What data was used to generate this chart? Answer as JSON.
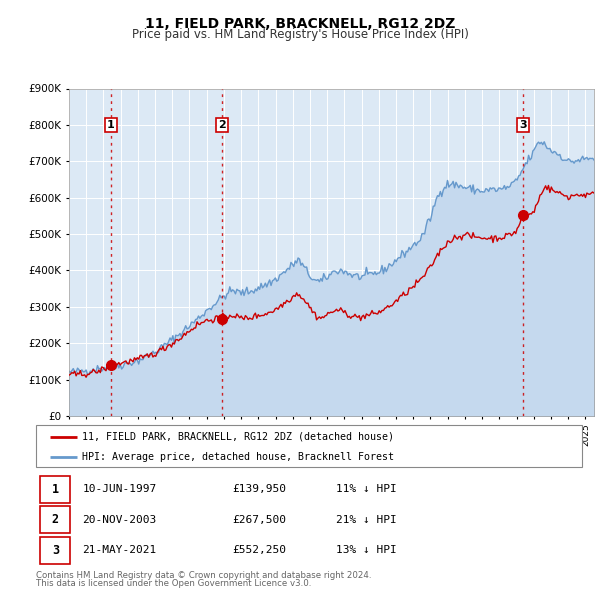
{
  "title": "11, FIELD PARK, BRACKNELL, RG12 2DZ",
  "subtitle": "Price paid vs. HM Land Registry's House Price Index (HPI)",
  "background_color": "#ffffff",
  "plot_bg_color": "#dce9f5",
  "grid_color": "#ffffff",
  "ylim": [
    0,
    900000
  ],
  "yticks": [
    0,
    100000,
    200000,
    300000,
    400000,
    500000,
    600000,
    700000,
    800000,
    900000
  ],
  "ytick_labels": [
    "£0",
    "£100K",
    "£200K",
    "£300K",
    "£400K",
    "£500K",
    "£600K",
    "£700K",
    "£800K",
    "£900K"
  ],
  "xlim_start": 1995.0,
  "xlim_end": 2025.5,
  "xticks": [
    1995,
    1996,
    1997,
    1998,
    1999,
    2000,
    2001,
    2002,
    2003,
    2004,
    2005,
    2006,
    2007,
    2008,
    2009,
    2010,
    2011,
    2012,
    2013,
    2014,
    2015,
    2016,
    2017,
    2018,
    2019,
    2020,
    2021,
    2022,
    2023,
    2024,
    2025
  ],
  "red_line_color": "#cc0000",
  "blue_line_color": "#6699cc",
  "blue_fill_color": "#c5d9ee",
  "sale_marker_color": "#cc0000",
  "sale_marker_size": 7,
  "vline_color": "#cc0000",
  "vline_style": "--",
  "sales": [
    {
      "label": "1",
      "date_year": 1997.44,
      "price": 139950
    },
    {
      "label": "2",
      "date_year": 2003.9,
      "price": 267500
    },
    {
      "label": "3",
      "date_year": 2021.38,
      "price": 552250
    }
  ],
  "legend_red_label": "11, FIELD PARK, BRACKNELL, RG12 2DZ (detached house)",
  "legend_blue_label": "HPI: Average price, detached house, Bracknell Forest",
  "footer_line1": "Contains HM Land Registry data © Crown copyright and database right 2024.",
  "footer_line2": "This data is licensed under the Open Government Licence v3.0.",
  "table_rows": [
    {
      "num": "1",
      "date": "10-JUN-1997",
      "price": "£139,950",
      "hpi": "11% ↓ HPI"
    },
    {
      "num": "2",
      "date": "20-NOV-2003",
      "price": "£267,500",
      "hpi": "21% ↓ HPI"
    },
    {
      "num": "3",
      "date": "21-MAY-2021",
      "price": "£552,250",
      "hpi": "13% ↓ HPI"
    }
  ]
}
